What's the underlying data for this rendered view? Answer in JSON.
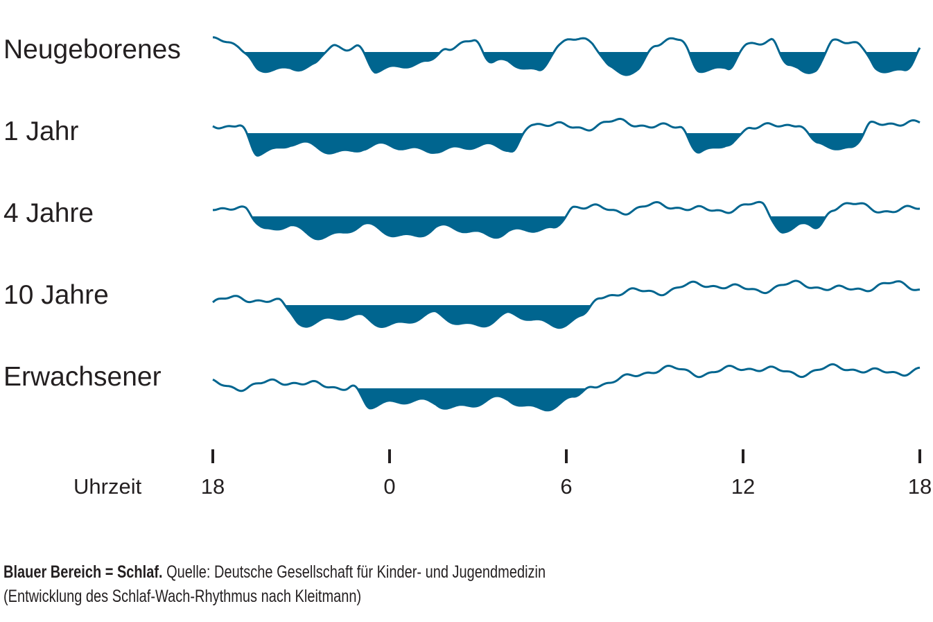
{
  "chart_data": {
    "type": "area",
    "title": "",
    "xlabel": "Uhrzeit",
    "x_unit": "hours since 18:00",
    "xlim": [
      0,
      24
    ],
    "x_ticks": [
      0,
      6,
      12,
      18,
      24
    ],
    "x_tick_labels": [
      "18",
      "0",
      "6",
      "12",
      "18"
    ],
    "colors": {
      "sleep": "#00658f",
      "line": "#00658f"
    },
    "series": [
      {
        "name": "Neugeborenes",
        "sleep_periods": [
          [
            1.0,
            4.0
          ],
          [
            5.0,
            7.8
          ],
          [
            9.0,
            11.6
          ],
          [
            13.0,
            14.9
          ],
          [
            16.0,
            18.0
          ],
          [
            19.1,
            20.9
          ],
          [
            22.0,
            24.0
          ]
        ]
      },
      {
        "name": "1 Jahr",
        "sleep_periods": [
          [
            1.0,
            10.7
          ],
          [
            16.0,
            18.1
          ],
          [
            20.0,
            22.2
          ]
        ]
      },
      {
        "name": "4 Jahre",
        "sleep_periods": [
          [
            1.25,
            12.1
          ],
          [
            18.8,
            20.9
          ]
        ]
      },
      {
        "name": "10 Jahre",
        "sleep_periods": [
          [
            2.4,
            13.0
          ]
        ]
      },
      {
        "name": "Erwachsener",
        "sleep_periods": [
          [
            4.8,
            12.8
          ]
        ]
      }
    ]
  },
  "caption": {
    "bold": "Blauer Bereich = Schlaf.",
    "line1": "Quelle: Deutsche Gesellschaft für Kinder- und Jugendmedizin",
    "line2": "(Entwicklung des Schlaf-Wach-Rhythmus nach Kleitmann)"
  }
}
